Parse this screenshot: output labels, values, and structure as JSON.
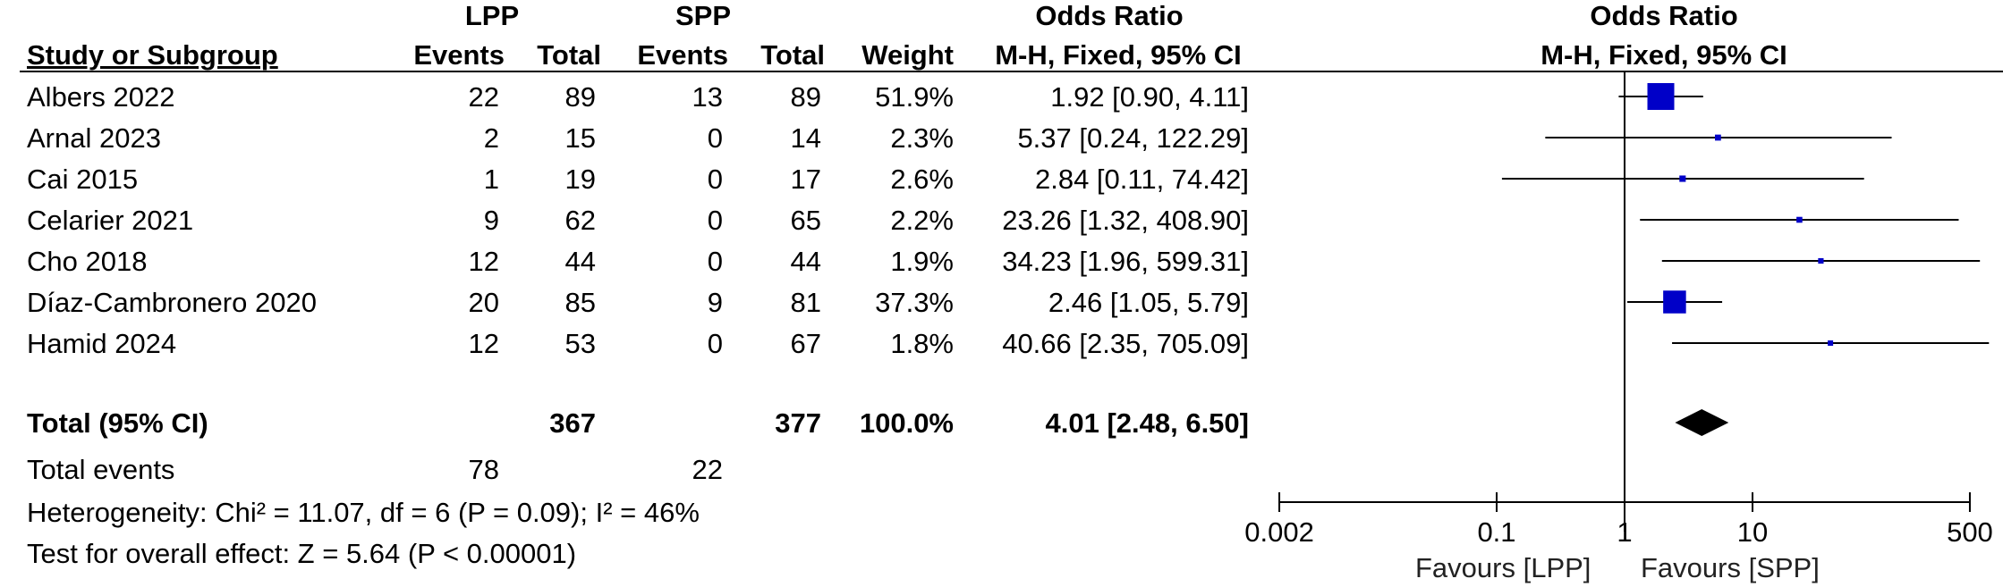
{
  "headers": {
    "lpp": "LPP",
    "spp": "SPP",
    "or_table": "Odds Ratio",
    "or_plot": "Odds Ratio",
    "study": "Study or Subgroup",
    "events1": "Events",
    "total1": "Total",
    "events2": "Events",
    "total2": "Total",
    "weight": "Weight",
    "method_table": "M-H, Fixed, 95% CI",
    "method_plot": "M-H, Fixed, 95% CI"
  },
  "studies": [
    {
      "name": "Albers 2022",
      "e1": "22",
      "t1": "89",
      "e2": "13",
      "t2": "89",
      "weight": "51.9%",
      "ci": "1.92 [0.90, 4.11]"
    },
    {
      "name": "Arnal 2023",
      "e1": "2",
      "t1": "15",
      "e2": "0",
      "t2": "14",
      "weight": "2.3%",
      "ci": "5.37 [0.24, 122.29]"
    },
    {
      "name": "Cai 2015",
      "e1": "1",
      "t1": "19",
      "e2": "0",
      "t2": "17",
      "weight": "2.6%",
      "ci": "2.84 [0.11, 74.42]"
    },
    {
      "name": "Celarier 2021",
      "e1": "9",
      "t1": "62",
      "e2": "0",
      "t2": "65",
      "weight": "2.2%",
      "ci": "23.26 [1.32, 408.90]"
    },
    {
      "name": "Cho 2018",
      "e1": "12",
      "t1": "44",
      "e2": "0",
      "t2": "44",
      "weight": "1.9%",
      "ci": "34.23 [1.96, 599.31]"
    },
    {
      "name": "Díaz-Cambronero 2020",
      "e1": "20",
      "t1": "85",
      "e2": "9",
      "t2": "81",
      "weight": "37.3%",
      "ci": "2.46 [1.05, 5.79]"
    },
    {
      "name": "Hamid 2024",
      "e1": "12",
      "t1": "53",
      "e2": "0",
      "t2": "67",
      "weight": "1.8%",
      "ci": "40.66 [2.35, 705.09]"
    }
  ],
  "total": {
    "label": "Total (95% CI)",
    "t1": "367",
    "t2": "377",
    "weight": "100.0%",
    "ci": "4.01 [2.48, 6.50]"
  },
  "total_events": {
    "label": "Total events",
    "e1": "78",
    "e2": "22"
  },
  "heterogeneity": "Heterogeneity: Chi² = 11.07, df = 6 (P = 0.09); I² = 46%",
  "overall_effect": "Test for overall effect: Z = 5.64 (P < 0.00001)",
  "favours_left": "Favours [LPP]",
  "favours_right": "Favours [SPP]",
  "colors": {
    "marker": "#0000c8",
    "line": "#000000"
  },
  "chart_data": {
    "type": "scatter",
    "title": "Odds Ratio",
    "subtitle": "M-H, Fixed, 95% CI",
    "x_scale": "log",
    "xlim": [
      0.002,
      500
    ],
    "x_ticks": [
      "0.002",
      "0.1",
      "1",
      "10",
      "500"
    ],
    "categories": [
      "Albers 2022",
      "Arnal 2023",
      "Cai 2015",
      "Celarier 2021",
      "Cho 2018",
      "Díaz-Cambronero 2020",
      "Hamid 2024"
    ],
    "series": [
      {
        "or": 1.92,
        "lower": 0.9,
        "upper": 4.11,
        "weight": 51.9
      },
      {
        "or": 5.37,
        "lower": 0.24,
        "upper": 122.29,
        "weight": 2.3
      },
      {
        "or": 2.84,
        "lower": 0.11,
        "upper": 74.42,
        "weight": 2.6
      },
      {
        "or": 23.26,
        "lower": 1.32,
        "upper": 408.9,
        "weight": 2.2
      },
      {
        "or": 34.23,
        "lower": 1.96,
        "upper": 599.31,
        "weight": 1.9
      },
      {
        "or": 2.46,
        "lower": 1.05,
        "upper": 5.79,
        "weight": 37.3
      },
      {
        "or": 40.66,
        "lower": 2.35,
        "upper": 705.09,
        "weight": 1.8
      }
    ],
    "pooled": {
      "or": 4.01,
      "lower": 2.48,
      "upper": 6.5
    }
  }
}
